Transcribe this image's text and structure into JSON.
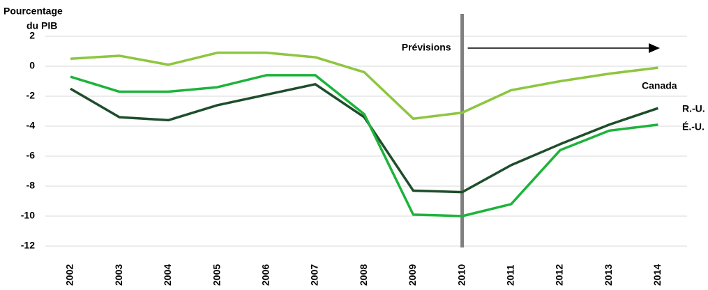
{
  "chart_data": {
    "type": "line",
    "ylabel": [
      "Pourcentage",
      "du PIB"
    ],
    "annotation": "Prévisions",
    "forecast_start": "2010",
    "categories": [
      "2002",
      "2003",
      "2004",
      "2005",
      "2006",
      "2007",
      "2008",
      "2009",
      "2010",
      "2011",
      "2012",
      "2013",
      "2014"
    ],
    "series": [
      {
        "name": "Canada",
        "color": "#8dc63f",
        "values": [
          0.5,
          0.7,
          0.1,
          0.9,
          0.9,
          0.6,
          -0.4,
          -3.5,
          -3.1,
          -1.6,
          -1.0,
          -0.5,
          -0.1
        ]
      },
      {
        "name": "R.-U.",
        "color": "#1e4d2b",
        "values": [
          -1.5,
          -3.4,
          -3.6,
          -2.6,
          -1.9,
          -1.2,
          -3.4,
          -8.3,
          -8.4,
          -6.6,
          -5.2,
          -3.9,
          -2.8
        ]
      },
      {
        "name": "É.-U.",
        "color": "#1db33b",
        "values": [
          -0.7,
          -1.7,
          -1.7,
          -1.4,
          -0.6,
          -0.6,
          -3.2,
          -9.9,
          -10.0,
          -9.2,
          -5.6,
          -4.3,
          -3.9
        ]
      }
    ],
    "ylim": [
      -12,
      2
    ],
    "yticks": [
      -12,
      -10,
      -8,
      -6,
      -4,
      -2,
      0,
      2
    ],
    "grid": true
  }
}
